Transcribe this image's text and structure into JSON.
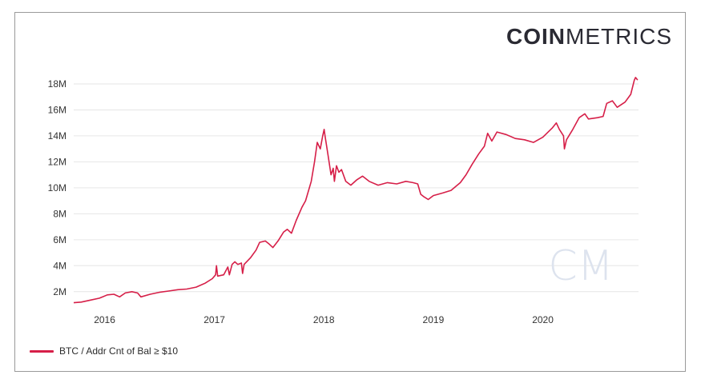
{
  "brand": {
    "logo_bold": "COIN",
    "logo_light": "METRICS",
    "watermark": "CM"
  },
  "colors": {
    "series": "#d61f48",
    "grid": "#e6e6e6",
    "watermark": "#dde3ee"
  },
  "chart_data": {
    "type": "line",
    "title": "",
    "xlabel": "",
    "ylabel": "",
    "grid": true,
    "legend_position": "bottom-left",
    "x_ticks": [
      "2016",
      "2017",
      "2018",
      "2019",
      "2020"
    ],
    "y_ticks": [
      "2M",
      "4M",
      "6M",
      "8M",
      "10M",
      "12M",
      "14M",
      "16M",
      "18M"
    ],
    "xlim": [
      "2015-09-20",
      "2020-11-15"
    ],
    "ylim": [
      1000000,
      18800000
    ],
    "series": [
      {
        "name": "BTC / Addr Cnt of Bal ≥ $10",
        "points": [
          [
            "2015-09-20",
            1150000
          ],
          [
            "2015-10-15",
            1200000
          ],
          [
            "2015-11-15",
            1350000
          ],
          [
            "2015-12-15",
            1500000
          ],
          [
            "2016-01-10",
            1750000
          ],
          [
            "2016-02-01",
            1800000
          ],
          [
            "2016-02-20",
            1600000
          ],
          [
            "2016-03-10",
            1900000
          ],
          [
            "2016-04-01",
            2000000
          ],
          [
            "2016-04-20",
            1900000
          ],
          [
            "2016-05-01",
            1600000
          ],
          [
            "2016-06-01",
            1800000
          ],
          [
            "2016-07-01",
            1950000
          ],
          [
            "2016-08-01",
            2050000
          ],
          [
            "2016-09-01",
            2150000
          ],
          [
            "2016-10-01",
            2200000
          ],
          [
            "2016-11-01",
            2350000
          ],
          [
            "2016-12-01",
            2650000
          ],
          [
            "2016-12-25",
            3000000
          ],
          [
            "2017-01-05",
            3300000
          ],
          [
            "2017-01-08",
            4000000
          ],
          [
            "2017-01-12",
            3200000
          ],
          [
            "2017-02-01",
            3300000
          ],
          [
            "2017-02-15",
            3900000
          ],
          [
            "2017-02-20",
            3300000
          ],
          [
            "2017-03-01",
            4100000
          ],
          [
            "2017-03-10",
            4300000
          ],
          [
            "2017-03-20",
            4100000
          ],
          [
            "2017-04-01",
            4200000
          ],
          [
            "2017-04-05",
            3400000
          ],
          [
            "2017-04-10",
            4100000
          ],
          [
            "2017-05-01",
            4600000
          ],
          [
            "2017-05-20",
            5200000
          ],
          [
            "2017-06-01",
            5800000
          ],
          [
            "2017-06-20",
            5900000
          ],
          [
            "2017-07-01",
            5700000
          ],
          [
            "2017-07-15",
            5400000
          ],
          [
            "2017-08-01",
            5900000
          ],
          [
            "2017-08-20",
            6600000
          ],
          [
            "2017-09-01",
            6800000
          ],
          [
            "2017-09-15",
            6500000
          ],
          [
            "2017-10-01",
            7500000
          ],
          [
            "2017-10-20",
            8500000
          ],
          [
            "2017-11-01",
            9000000
          ],
          [
            "2017-11-20",
            10500000
          ],
          [
            "2017-12-01",
            12000000
          ],
          [
            "2017-12-10",
            13500000
          ],
          [
            "2017-12-20",
            13000000
          ],
          [
            "2017-12-28",
            14000000
          ],
          [
            "2018-01-02",
            14500000
          ],
          [
            "2018-01-05",
            14000000
          ],
          [
            "2018-01-15",
            12500000
          ],
          [
            "2018-01-25",
            11000000
          ],
          [
            "2018-02-01",
            11500000
          ],
          [
            "2018-02-05",
            10500000
          ],
          [
            "2018-02-12",
            11700000
          ],
          [
            "2018-02-20",
            11200000
          ],
          [
            "2018-03-01",
            11400000
          ],
          [
            "2018-03-15",
            10500000
          ],
          [
            "2018-04-01",
            10200000
          ],
          [
            "2018-04-20",
            10600000
          ],
          [
            "2018-05-10",
            10900000
          ],
          [
            "2018-06-01",
            10500000
          ],
          [
            "2018-07-01",
            10200000
          ],
          [
            "2018-08-01",
            10400000
          ],
          [
            "2018-09-01",
            10300000
          ],
          [
            "2018-10-01",
            10500000
          ],
          [
            "2018-10-25",
            10400000
          ],
          [
            "2018-11-10",
            10300000
          ],
          [
            "2018-11-20",
            9500000
          ],
          [
            "2018-12-01",
            9300000
          ],
          [
            "2018-12-15",
            9100000
          ],
          [
            "2019-01-01",
            9400000
          ],
          [
            "2019-02-01",
            9600000
          ],
          [
            "2019-03-01",
            9800000
          ],
          [
            "2019-04-01",
            10400000
          ],
          [
            "2019-04-20",
            11000000
          ],
          [
            "2019-05-10",
            11800000
          ],
          [
            "2019-06-01",
            12600000
          ],
          [
            "2019-06-20",
            13200000
          ],
          [
            "2019-07-01",
            14200000
          ],
          [
            "2019-07-15",
            13600000
          ],
          [
            "2019-08-01",
            14300000
          ],
          [
            "2019-09-01",
            14100000
          ],
          [
            "2019-10-01",
            13800000
          ],
          [
            "2019-11-01",
            13700000
          ],
          [
            "2019-12-01",
            13500000
          ],
          [
            "2020-01-01",
            13900000
          ],
          [
            "2020-02-01",
            14600000
          ],
          [
            "2020-02-15",
            15000000
          ],
          [
            "2020-02-25",
            14500000
          ],
          [
            "2020-03-10",
            14000000
          ],
          [
            "2020-03-13",
            13000000
          ],
          [
            "2020-03-20",
            13700000
          ],
          [
            "2020-04-10",
            14500000
          ],
          [
            "2020-05-01",
            15400000
          ],
          [
            "2020-05-20",
            15700000
          ],
          [
            "2020-06-01",
            15300000
          ],
          [
            "2020-07-01",
            15400000
          ],
          [
            "2020-07-20",
            15500000
          ],
          [
            "2020-08-01",
            16500000
          ],
          [
            "2020-08-20",
            16700000
          ],
          [
            "2020-09-05",
            16200000
          ],
          [
            "2020-10-01",
            16600000
          ],
          [
            "2020-10-20",
            17200000
          ],
          [
            "2020-11-01",
            18300000
          ],
          [
            "2020-11-05",
            18500000
          ],
          [
            "2020-11-12",
            18300000
          ]
        ]
      }
    ]
  }
}
